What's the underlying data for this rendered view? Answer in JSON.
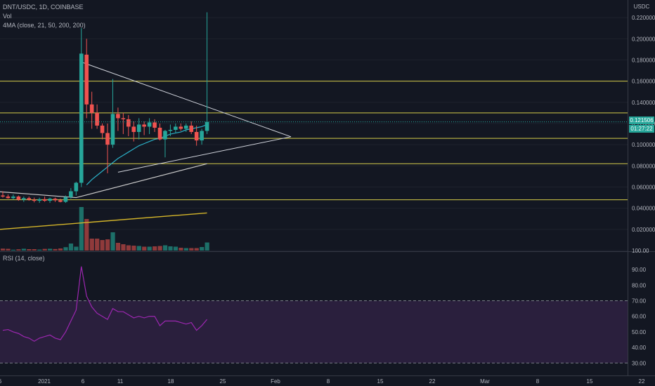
{
  "header": {
    "symbol_line": "DNT/USDC, 1D, COINBASE",
    "vol_label": "Vol",
    "ma_label": "4MA (close, 21, 50, 200, 200)",
    "rsi_label": "RSI (14, close)"
  },
  "price_axis": {
    "currency": "USDC",
    "last_price": "0.121506",
    "countdown": "01:27:22",
    "ticks": [
      "0.220000",
      "0.200000",
      "0.180000",
      "0.160000",
      "0.140000",
      "0.120000",
      "0.100000",
      "0.080000",
      "0.060000",
      "0.040000",
      "0.020000",
      "100.00"
    ]
  },
  "rsi_axis": {
    "ticks": [
      "90.00",
      "80.00",
      "70.00",
      "60.00",
      "50.00",
      "40.00",
      "30.00"
    ]
  },
  "time_axis": {
    "ticks": [
      "6",
      "2021",
      "6",
      "11",
      "18",
      "25",
      "Feb",
      "8",
      "15",
      "22",
      "Mar",
      "8",
      "15",
      "22"
    ]
  },
  "colors": {
    "up": "#26a69a",
    "down": "#ef5350",
    "up_vol": "#1d7069",
    "down_vol": "#8f3a3b",
    "hline": "#d4cc4a",
    "trendline": "#d1d4dc",
    "ma_fast": "#2bb0c7",
    "ma_slow": "#c9c9c9",
    "ma_200": "#d4b52a",
    "rsi_line": "#9c27b0",
    "rsi_band": "#2a1f3d"
  },
  "chart_data": {
    "type": "candlestick",
    "x_start_index": 0,
    "candles": [
      {
        "o": 0.052,
        "h": 0.056,
        "l": 0.05,
        "c": 0.051
      },
      {
        "o": 0.051,
        "h": 0.053,
        "l": 0.049,
        "c": 0.0495
      },
      {
        "o": 0.0495,
        "h": 0.053,
        "l": 0.048,
        "c": 0.051
      },
      {
        "o": 0.051,
        "h": 0.052,
        "l": 0.047,
        "c": 0.048
      },
      {
        "o": 0.048,
        "h": 0.051,
        "l": 0.046,
        "c": 0.0495
      },
      {
        "o": 0.0495,
        "h": 0.051,
        "l": 0.047,
        "c": 0.048
      },
      {
        "o": 0.048,
        "h": 0.05,
        "l": 0.0455,
        "c": 0.047
      },
      {
        "o": 0.047,
        "h": 0.05,
        "l": 0.045,
        "c": 0.0485
      },
      {
        "o": 0.0485,
        "h": 0.051,
        "l": 0.046,
        "c": 0.047
      },
      {
        "o": 0.047,
        "h": 0.05,
        "l": 0.045,
        "c": 0.049
      },
      {
        "o": 0.049,
        "h": 0.05,
        "l": 0.046,
        "c": 0.0475
      },
      {
        "o": 0.0475,
        "h": 0.049,
        "l": 0.0455,
        "c": 0.046
      },
      {
        "o": 0.046,
        "h": 0.052,
        "l": 0.045,
        "c": 0.0505
      },
      {
        "o": 0.0505,
        "h": 0.059,
        "l": 0.049,
        "c": 0.056
      },
      {
        "o": 0.056,
        "h": 0.065,
        "l": 0.052,
        "c": 0.064
      },
      {
        "o": 0.064,
        "h": 0.21,
        "l": 0.06,
        "c": 0.186
      },
      {
        "o": 0.185,
        "h": 0.2,
        "l": 0.125,
        "c": 0.138
      },
      {
        "o": 0.138,
        "h": 0.15,
        "l": 0.115,
        "c": 0.13
      },
      {
        "o": 0.13,
        "h": 0.138,
        "l": 0.115,
        "c": 0.118
      },
      {
        "o": 0.118,
        "h": 0.12,
        "l": 0.105,
        "c": 0.111
      },
      {
        "o": 0.111,
        "h": 0.12,
        "l": 0.073,
        "c": 0.1
      },
      {
        "o": 0.1,
        "h": 0.162,
        "l": 0.097,
        "c": 0.129
      },
      {
        "o": 0.129,
        "h": 0.135,
        "l": 0.113,
        "c": 0.125
      },
      {
        "o": 0.125,
        "h": 0.13,
        "l": 0.11,
        "c": 0.124
      },
      {
        "o": 0.124,
        "h": 0.128,
        "l": 0.108,
        "c": 0.117
      },
      {
        "o": 0.117,
        "h": 0.122,
        "l": 0.103,
        "c": 0.112
      },
      {
        "o": 0.112,
        "h": 0.125,
        "l": 0.105,
        "c": 0.119
      },
      {
        "o": 0.119,
        "h": 0.122,
        "l": 0.109,
        "c": 0.117
      },
      {
        "o": 0.117,
        "h": 0.125,
        "l": 0.11,
        "c": 0.121
      },
      {
        "o": 0.121,
        "h": 0.124,
        "l": 0.112,
        "c": 0.116
      },
      {
        "o": 0.116,
        "h": 0.12,
        "l": 0.104,
        "c": 0.105
      },
      {
        "o": 0.105,
        "h": 0.114,
        "l": 0.088,
        "c": 0.113
      },
      {
        "o": 0.113,
        "h": 0.119,
        "l": 0.108,
        "c": 0.114
      },
      {
        "o": 0.114,
        "h": 0.12,
        "l": 0.111,
        "c": 0.117
      },
      {
        "o": 0.117,
        "h": 0.12,
        "l": 0.113,
        "c": 0.115
      },
      {
        "o": 0.115,
        "h": 0.12,
        "l": 0.112,
        "c": 0.118
      },
      {
        "o": 0.118,
        "h": 0.122,
        "l": 0.11,
        "c": 0.112
      },
      {
        "o": 0.112,
        "h": 0.118,
        "l": 0.099,
        "c": 0.104
      },
      {
        "o": 0.104,
        "h": 0.115,
        "l": 0.1,
        "c": 0.113
      },
      {
        "o": 0.113,
        "h": 0.225,
        "l": 0.11,
        "c": 0.1215
      }
    ],
    "volume": [
      0.28,
      0.25,
      0.12,
      0.18,
      0.26,
      0.2,
      0.2,
      0.14,
      0.24,
      0.26,
      0.22,
      0.3,
      0.48,
      1.0,
      0.55,
      6.2,
      4.5,
      1.7,
      1.7,
      1.5,
      1.6,
      2.6,
      1.1,
      0.9,
      0.75,
      0.7,
      0.65,
      0.55,
      0.55,
      0.6,
      0.65,
      0.75,
      0.6,
      0.55,
      0.4,
      0.35,
      0.35,
      0.35,
      0.5,
      1.15
    ],
    "rsi": [
      51,
      51.5,
      50,
      49,
      47,
      46,
      44,
      46,
      47,
      48,
      46,
      45,
      50,
      57,
      64,
      92,
      73,
      66,
      62,
      60,
      58,
      65,
      63,
      63,
      61,
      59,
      60,
      59,
      60,
      60,
      54,
      57,
      57,
      57,
      56,
      55,
      56,
      51,
      54,
      58
    ],
    "rsi_band": [
      30,
      70
    ],
    "ma_fast": [
      null,
      null,
      null,
      null,
      null,
      null,
      null,
      null,
      null,
      null,
      null,
      null,
      null,
      null,
      null,
      null,
      0.062,
      0.067,
      0.071,
      0.075,
      0.079,
      0.083,
      0.087,
      0.09,
      0.093,
      0.096,
      0.099,
      0.101,
      0.103,
      0.105,
      0.106,
      0.108,
      0.11,
      0.111,
      0.112,
      0.114,
      0.115,
      0.116,
      0.117,
      0.119
    ],
    "ma_slow_line": {
      "from": [
        0,
        0.0555
      ],
      "to": [
        14,
        0.05
      ],
      "to2": [
        39,
        0.082
      ]
    },
    "ma_200_line": {
      "from": [
        0,
        0.02
      ],
      "to": [
        39,
        0.0355
      ]
    },
    "horizontal_levels": [
      0.16,
      0.13,
      0.106,
      0.082,
      0.048
    ],
    "ylim": [
      0.0,
      0.23
    ],
    "rsi_ylim": [
      22,
      100
    ]
  }
}
